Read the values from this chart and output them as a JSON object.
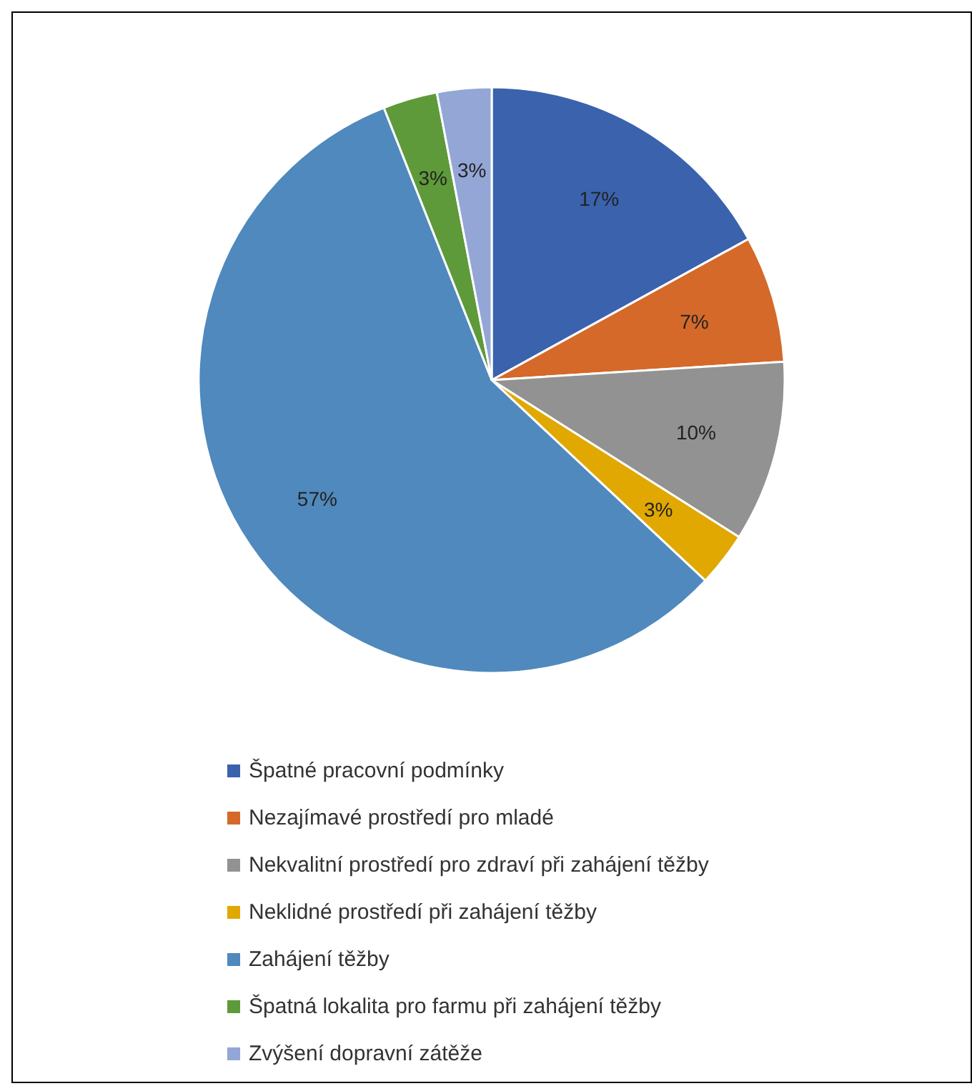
{
  "chart_data": {
    "type": "pie",
    "categories": [
      "Špatné pracovní podmínky",
      "Nezajímavé prostředí pro mladé",
      "Nekvalitní prostředí pro zdraví při zahájení těžby",
      "Neklidné prostředí při zahájení těžby",
      "Zahájení těžby",
      "Špatná lokalita pro farmu při zahájení těžby",
      "Zvýšení dopravní zátěže"
    ],
    "values": [
      17,
      7,
      10,
      3,
      57,
      3,
      3
    ],
    "value_labels": [
      "17%",
      "7%",
      "10%",
      "3%",
      "57%",
      "3%",
      "3%"
    ],
    "colors": [
      "#3a62ad",
      "#d4692a",
      "#929292",
      "#e0a800",
      "#4f89bd",
      "#5e9a3a",
      "#93a6d6"
    ],
    "legend": "bottom"
  }
}
